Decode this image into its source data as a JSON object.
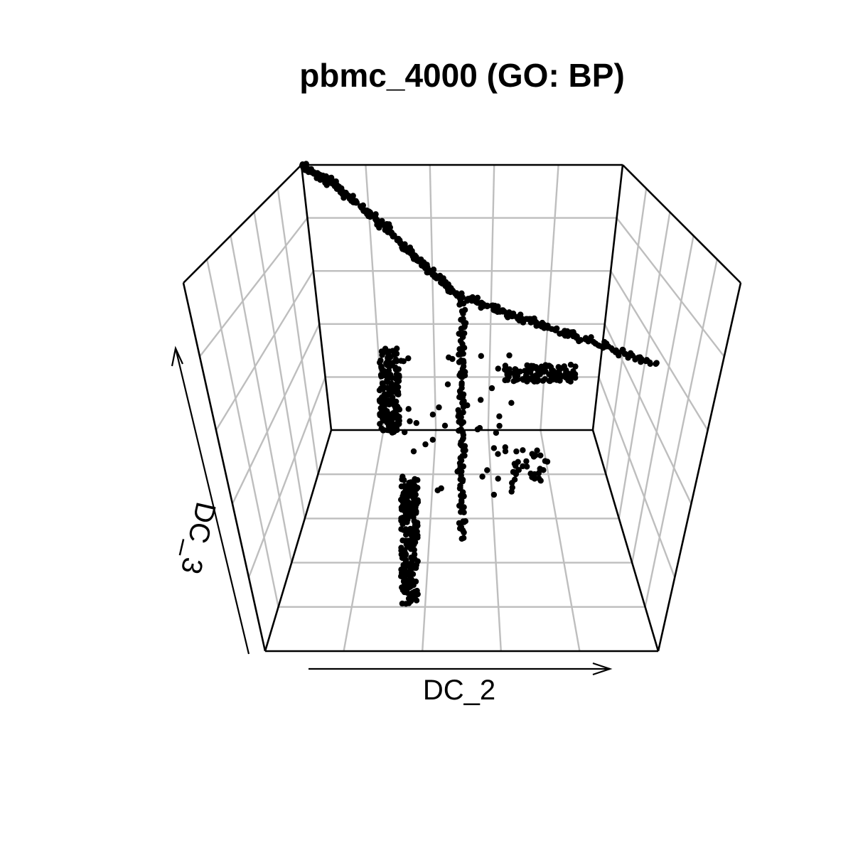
{
  "chart_data": {
    "type": "scatter",
    "title": "pbmc_4000 (GO: BP)",
    "xlabel": "DC_2",
    "ylabel": "DC_3",
    "zlabel": "",
    "point_color": "#000000",
    "grid_color": "#bebebe",
    "grid": true,
    "projection": "3d",
    "series": [
      {
        "branch": "upper-left",
        "points": [
          [
            0.0,
            1.0,
            0.0
          ],
          [
            0.02,
            0.985,
            0.0
          ],
          [
            0.04,
            0.97,
            0.0
          ],
          [
            0.06,
            0.955,
            0.0
          ],
          [
            0.08,
            0.94,
            0.0
          ],
          [
            0.1,
            0.92,
            0.0
          ],
          [
            0.12,
            0.9,
            0.0
          ],
          [
            0.14,
            0.88,
            0.0
          ],
          [
            0.16,
            0.86,
            0.0
          ],
          [
            0.18,
            0.84,
            0.0
          ],
          [
            0.2,
            0.82,
            0.0
          ],
          [
            0.22,
            0.8,
            0.0
          ],
          [
            0.24,
            0.775,
            0.0
          ],
          [
            0.26,
            0.75,
            0.0
          ],
          [
            0.28,
            0.725,
            0.0
          ],
          [
            0.3,
            0.7,
            0.0
          ],
          [
            0.32,
            0.68,
            0.0
          ],
          [
            0.34,
            0.655,
            0.0
          ],
          [
            0.36,
            0.63,
            0.0
          ],
          [
            0.38,
            0.61,
            0.0
          ],
          [
            0.4,
            0.59,
            0.0
          ],
          [
            0.42,
            0.57,
            0.0
          ],
          [
            0.44,
            0.55,
            0.0
          ],
          [
            0.46,
            0.53,
            0.0
          ],
          [
            0.48,
            0.515,
            0.0
          ],
          [
            0.5,
            0.5,
            0.0
          ]
        ]
      },
      {
        "branch": "right",
        "points": [
          [
            0.52,
            0.5,
            0.0
          ],
          [
            0.55,
            0.515,
            0.05
          ],
          [
            0.58,
            0.53,
            0.1
          ],
          [
            0.61,
            0.545,
            0.15
          ],
          [
            0.64,
            0.56,
            0.2
          ],
          [
            0.67,
            0.575,
            0.25
          ],
          [
            0.7,
            0.59,
            0.3
          ],
          [
            0.73,
            0.6,
            0.35
          ],
          [
            0.76,
            0.61,
            0.4
          ],
          [
            0.79,
            0.62,
            0.45
          ],
          [
            0.82,
            0.63,
            0.5
          ],
          [
            0.85,
            0.64,
            0.55
          ],
          [
            0.88,
            0.645,
            0.6
          ],
          [
            0.91,
            0.65,
            0.65
          ],
          [
            0.94,
            0.655,
            0.7
          ]
        ]
      },
      {
        "branch": "lower",
        "points": [
          [
            0.5,
            0.48,
            0.0
          ],
          [
            0.5,
            0.44,
            0.05
          ],
          [
            0.5,
            0.4,
            0.1
          ],
          [
            0.5,
            0.36,
            0.15
          ],
          [
            0.5,
            0.32,
            0.2
          ],
          [
            0.5,
            0.28,
            0.25
          ],
          [
            0.5,
            0.24,
            0.3
          ],
          [
            0.5,
            0.2,
            0.35
          ],
          [
            0.5,
            0.16,
            0.4
          ],
          [
            0.5,
            0.12,
            0.45
          ],
          [
            0.5,
            0.08,
            0.5
          ],
          [
            0.5,
            0.04,
            0.55
          ]
        ]
      }
    ]
  }
}
